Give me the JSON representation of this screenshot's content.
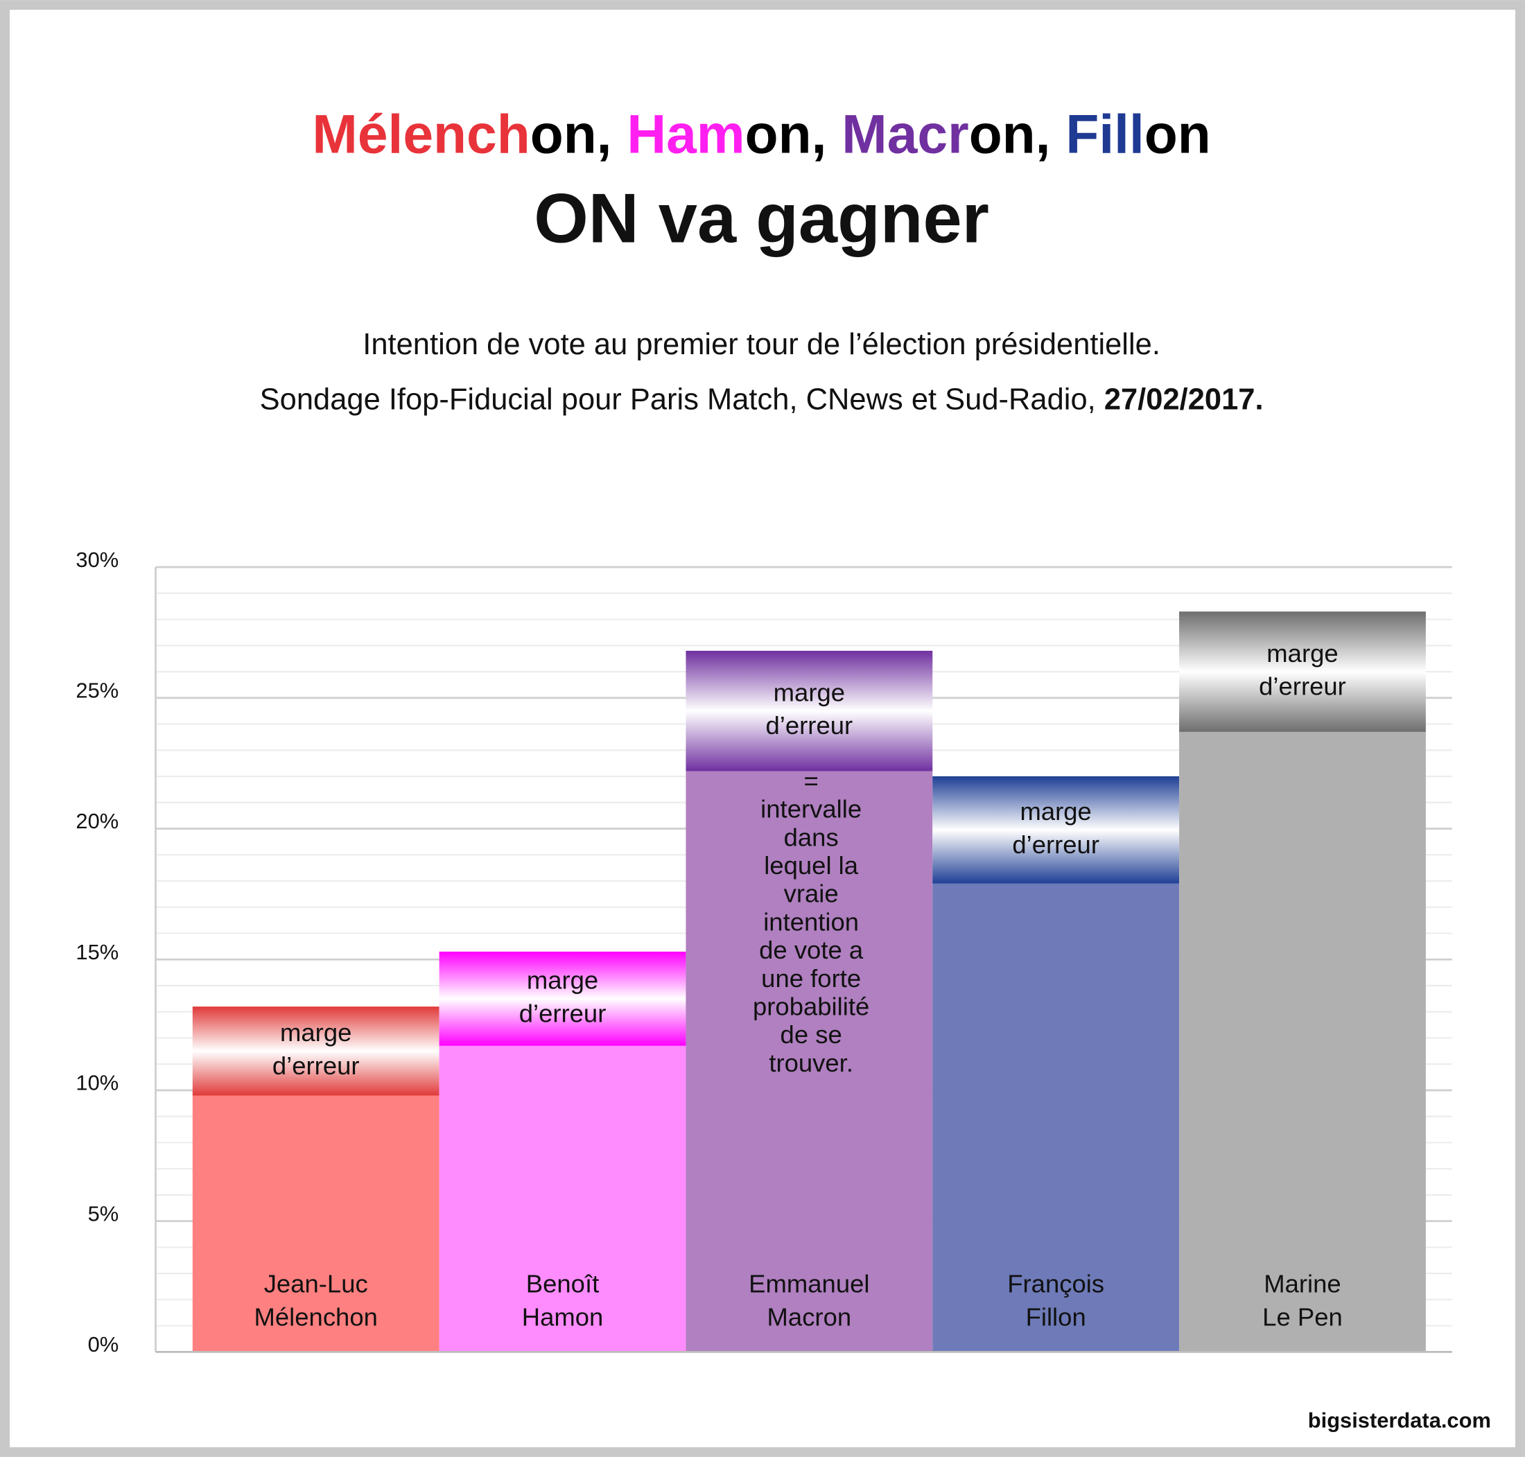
{
  "chart_data": {
    "type": "range_bar",
    "title_parts": [
      {
        "text": "Mélench",
        "color": "#e8333a"
      },
      {
        "text": "on, ",
        "color": "#000000"
      },
      {
        "text": "Ham",
        "color": "#ff1ff0"
      },
      {
        "text": "on, ",
        "color": "#000000"
      },
      {
        "text": "Macr",
        "color": "#7030a0"
      },
      {
        "text": "on, ",
        "color": "#000000"
      },
      {
        "text": "Fill",
        "color": "#1f3a93"
      },
      {
        "text": "on",
        "color": "#000000"
      }
    ],
    "title_line2": "ON va gagner",
    "subtitle_line1": "Intention de vote au premier tour de l’élection présidentielle.",
    "subtitle_line2": "Sondage Ifop-Fiducial pour Paris Match, CNews et Sud-Radio, ",
    "subtitle_date": "27/02/2017.",
    "categories": [
      [
        "Jean-Luc",
        "Mélenchon"
      ],
      [
        "Benoît",
        "Hamon"
      ],
      [
        "Emmanuel",
        "Macron"
      ],
      [
        "François",
        "Fillon"
      ],
      [
        "Marine",
        "Le Pen"
      ]
    ],
    "lower": [
      9.8,
      11.7,
      22.2,
      17.9,
      23.7
    ],
    "upper": [
      13.2,
      15.3,
      26.8,
      22.0,
      28.3
    ],
    "colors": [
      "#ff8080",
      "#ff8cff",
      "#b080c0",
      "#6e7bb8",
      "#b0b0b0"
    ],
    "band_colors": [
      "#e03a3a",
      "#ff00ff",
      "#7030a0",
      "#1f3f95",
      "#6e6e6e"
    ],
    "band_labels": [
      [
        "marge",
        "d’erreur"
      ],
      [
        "marge",
        "d’erreur"
      ],
      [
        "marge",
        "d’erreur"
      ],
      [
        "marge",
        "d’erreur"
      ],
      [
        "marge",
        "d’erreur"
      ]
    ],
    "note": [
      "=",
      "intervalle",
      "dans",
      "lequel la",
      "vraie",
      "intention",
      "de vote a",
      "une forte",
      "probabilité",
      "de se",
      "trouver."
    ],
    "ylim": [
      0,
      30
    ],
    "yticks": [
      {
        "value": 0,
        "label": "0%"
      },
      {
        "value": 5,
        "label": "5%"
      },
      {
        "value": 10,
        "label": "10%"
      },
      {
        "value": 15,
        "label": "15%"
      },
      {
        "value": 20,
        "label": "20%"
      },
      {
        "value": 25,
        "label": "25%"
      },
      {
        "value": 30,
        "label": "30%"
      }
    ],
    "minor_yticks": [
      1,
      2,
      3,
      4,
      6,
      7,
      8,
      9,
      11,
      12,
      13,
      14,
      16,
      17,
      18,
      19,
      21,
      22,
      23,
      24,
      26,
      27,
      28,
      29
    ],
    "grid": true,
    "source": "bigsisterdata.com"
  }
}
